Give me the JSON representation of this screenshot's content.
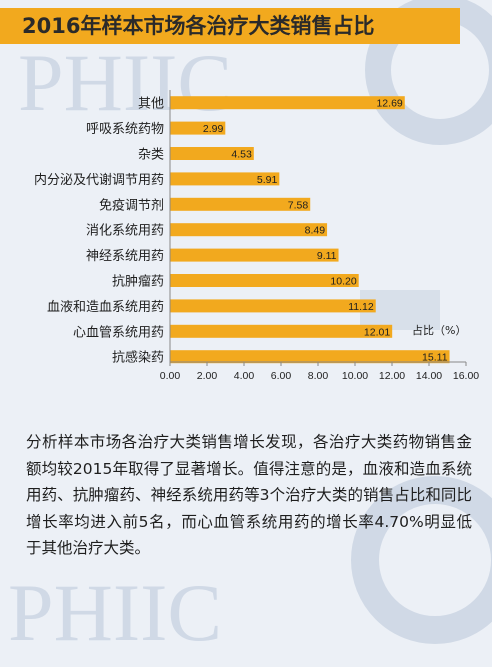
{
  "header": {
    "title": "2016年样本市场各治疗大类销售占比"
  },
  "watermark": {
    "text": "PHIIC"
  },
  "colors": {
    "bar": "#f2a91e",
    "title_bg": "#f2a91e",
    "background": "#ecf0f6",
    "watermark": "#d0d9e6"
  },
  "chart_data": {
    "type": "bar",
    "orientation": "horizontal",
    "categories": [
      "其他",
      "呼吸系统药物",
      "杂类",
      "内分泌及代谢调节用药",
      "免疫调节剂",
      "消化系统用药",
      "神经系统用药",
      "抗肿瘤药",
      "血液和造血系统用药",
      "心血管系统用药",
      "抗感染药"
    ],
    "values": [
      12.69,
      2.99,
      4.53,
      5.91,
      7.58,
      8.49,
      9.11,
      10.2,
      11.12,
      12.01,
      15.11
    ],
    "value_labels": [
      "12.69",
      "2.99",
      "4.53",
      "5.91",
      "7.58",
      "8.49",
      "9.11",
      "10.20",
      "11.12",
      "12.01",
      "15.11"
    ],
    "ticks": [
      "0.00",
      "2.00",
      "4.00",
      "6.00",
      "8.00",
      "10.00",
      "12.00",
      "14.00",
      "16.00"
    ],
    "xlim": [
      0,
      16
    ],
    "unit_label": "占比（%）",
    "title": "2016年样本市场各治疗大类销售占比",
    "grid": false
  },
  "paragraph": "分析样本市场各治疗大类销售增长发现，各治疗大类药物销售金额均较2015年取得了显著增长。值得注意的是，血液和造血系统用药、抗肿瘤药、神经系统用药等3个治疗大类的销售占比和同比增长率均进入前5名，而心血管系统用药的增长率4.70%明显低于其他治疗大类。"
}
